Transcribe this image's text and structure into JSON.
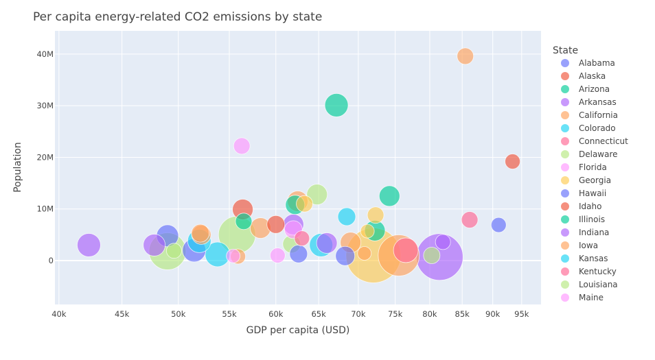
{
  "chart_data": {
    "type": "scatter",
    "title": "Per capita energy-related CO2 emissions by state",
    "xlabel": "GDP per capita (USD)",
    "ylabel": "Population",
    "x_scale": "log",
    "xlim": [
      39700,
      98500
    ],
    "ylim": [
      -8500000,
      44500000
    ],
    "x_ticks": [
      {
        "value": 40000,
        "label": "40k"
      },
      {
        "value": 45000,
        "label": "45k"
      },
      {
        "value": 50000,
        "label": "50k"
      },
      {
        "value": 55000,
        "label": "55k"
      },
      {
        "value": 60000,
        "label": "60k"
      },
      {
        "value": 65000,
        "label": "65k"
      },
      {
        "value": 70000,
        "label": "70k"
      },
      {
        "value": 75000,
        "label": "75k"
      },
      {
        "value": 80000,
        "label": "80k"
      },
      {
        "value": 85000,
        "label": "85k"
      },
      {
        "value": 90000,
        "label": "90k"
      },
      {
        "value": 95000,
        "label": "95k"
      }
    ],
    "y_ticks": [
      {
        "value": 0,
        "label": "0"
      },
      {
        "value": 10000000,
        "label": "10M"
      },
      {
        "value": 20000000,
        "label": "20M"
      },
      {
        "value": 30000000,
        "label": "30M"
      },
      {
        "value": 40000000,
        "label": "40M"
      }
    ],
    "grid": true,
    "legend_position": "right",
    "legend_title": "State",
    "marker_opacity": 0.65,
    "bubble_size_meaning": "Per capita energy-related CO2 emissions",
    "legend": [
      {
        "name": "Alabama",
        "color": "#636EFA"
      },
      {
        "name": "Alaska",
        "color": "#EF553B"
      },
      {
        "name": "Arizona",
        "color": "#00CC96"
      },
      {
        "name": "Arkansas",
        "color": "#AB63FA"
      },
      {
        "name": "California",
        "color": "#FFA15A"
      },
      {
        "name": "Colorado",
        "color": "#19D3F3"
      },
      {
        "name": "Connecticut",
        "color": "#FF6692"
      },
      {
        "name": "Delaware",
        "color": "#B6E880"
      },
      {
        "name": "Florida",
        "color": "#FF97FF"
      },
      {
        "name": "Georgia",
        "color": "#FECB52"
      },
      {
        "name": "Hawaii",
        "color": "#636EFA"
      },
      {
        "name": "Idaho",
        "color": "#EF553B"
      },
      {
        "name": "Illinois",
        "color": "#00CC96"
      },
      {
        "name": "Indiana",
        "color": "#AB63FA"
      },
      {
        "name": "Iowa",
        "color": "#FFA15A"
      },
      {
        "name": "Kansas",
        "color": "#19D3F3"
      },
      {
        "name": "Kentucky",
        "color": "#FF6692"
      },
      {
        "name": "Louisiana",
        "color": "#B6E880"
      },
      {
        "name": "Maine",
        "color": "#FF97FF"
      }
    ],
    "points": [
      {
        "x": 72000,
        "y": 1000000,
        "size": 40,
        "color": "#FECB52"
      },
      {
        "x": 81500,
        "y": 700000,
        "size": 34,
        "color": "#AB63FA"
      },
      {
        "x": 75500,
        "y": 1000000,
        "size": 30,
        "color": "#FFA15A"
      },
      {
        "x": 55800,
        "y": 5000000,
        "size": 27,
        "color": "#B6E880"
      },
      {
        "x": 49000,
        "y": 1800000,
        "size": 27,
        "color": "#B6E880"
      },
      {
        "x": 76500,
        "y": 2000000,
        "size": 18,
        "color": "#FF6692"
      },
      {
        "x": 53800,
        "y": 1200000,
        "size": 18,
        "color": "#19D3F3"
      },
      {
        "x": 51500,
        "y": 2000000,
        "size": 17,
        "color": "#636EFA"
      },
      {
        "x": 49000,
        "y": 4800000,
        "size": 16,
        "color": "#636EFA"
      },
      {
        "x": 67200,
        "y": 30100000,
        "size": 17,
        "color": "#00CC96"
      },
      {
        "x": 65300,
        "y": 3000000,
        "size": 17,
        "color": "#19D3F3"
      },
      {
        "x": 42300,
        "y": 3000000,
        "size": 17,
        "color": "#AB63FA"
      },
      {
        "x": 47800,
        "y": 3000000,
        "size": 16,
        "color": "#AB63FA"
      },
      {
        "x": 52000,
        "y": 3800000,
        "size": 17,
        "color": "#19D3F3"
      },
      {
        "x": 58300,
        "y": 6300000,
        "size": 15,
        "color": "#FFA15A"
      },
      {
        "x": 74200,
        "y": 12500000,
        "size": 15,
        "color": "#00CC96"
      },
      {
        "x": 64800,
        "y": 12800000,
        "size": 15,
        "color": "#B6E880"
      },
      {
        "x": 69000,
        "y": 3500000,
        "size": 15,
        "color": "#FFA15A"
      },
      {
        "x": 66000,
        "y": 3400000,
        "size": 15,
        "color": "#AB63FA"
      },
      {
        "x": 68300,
        "y": 900000,
        "size": 14,
        "color": "#636EFA"
      },
      {
        "x": 72200,
        "y": 5800000,
        "size": 15,
        "color": "#00CC96"
      },
      {
        "x": 56400,
        "y": 9900000,
        "size": 15,
        "color": "#EF553B"
      },
      {
        "x": 62500,
        "y": 11500000,
        "size": 15,
        "color": "#FFA15A"
      },
      {
        "x": 62000,
        "y": 7000000,
        "size": 15,
        "color": "#AB63FA"
      },
      {
        "x": 62200,
        "y": 10800000,
        "size": 14,
        "color": "#00CC96"
      },
      {
        "x": 60000,
        "y": 7000000,
        "size": 13,
        "color": "#EF553B"
      },
      {
        "x": 61800,
        "y": 3200000,
        "size": 13,
        "color": "#B6E880"
      },
      {
        "x": 62000,
        "y": 6000000,
        "size": 13,
        "color": "#FF97FF"
      },
      {
        "x": 63300,
        "y": 11000000,
        "size": 12,
        "color": "#FECB52"
      },
      {
        "x": 52200,
        "y": 5000000,
        "size": 14,
        "color": "#FFA15A"
      },
      {
        "x": 52100,
        "y": 5300000,
        "size": 13,
        "color": "#FFA15A"
      },
      {
        "x": 68500,
        "y": 8500000,
        "size": 13,
        "color": "#19D3F3"
      },
      {
        "x": 72300,
        "y": 8800000,
        "size": 12,
        "color": "#FECB52"
      },
      {
        "x": 56500,
        "y": 7600000,
        "size": 12,
        "color": "#00CC96"
      },
      {
        "x": 62600,
        "y": 1300000,
        "size": 13,
        "color": "#636EFA"
      },
      {
        "x": 63000,
        "y": 4300000,
        "size": 11,
        "color": "#FF6692"
      },
      {
        "x": 80300,
        "y": 1000000,
        "size": 12,
        "color": "#B6E880"
      },
      {
        "x": 49600,
        "y": 1900000,
        "size": 11,
        "color": "#B6E880"
      },
      {
        "x": 71200,
        "y": 5700000,
        "size": 10,
        "color": "#FECB52"
      },
      {
        "x": 70800,
        "y": 1400000,
        "size": 10,
        "color": "#FFA15A"
      },
      {
        "x": 56300,
        "y": 22200000,
        "size": 12,
        "color": "#FF97FF"
      },
      {
        "x": 85500,
        "y": 39600000,
        "size": 12,
        "color": "#FFA15A"
      },
      {
        "x": 93400,
        "y": 19200000,
        "size": 11,
        "color": "#EF553B"
      },
      {
        "x": 86200,
        "y": 7900000,
        "size": 12,
        "color": "#FF6692"
      },
      {
        "x": 91000,
        "y": 6900000,
        "size": 11,
        "color": "#636EFA"
      },
      {
        "x": 82000,
        "y": 3600000,
        "size": 11,
        "color": "#AB63FA"
      },
      {
        "x": 60200,
        "y": 1000000,
        "size": 11,
        "color": "#FF97FF"
      },
      {
        "x": 55900,
        "y": 800000,
        "size": 11,
        "color": "#FFA15A"
      },
      {
        "x": 55400,
        "y": 900000,
        "size": 10,
        "color": "#FF97FF"
      }
    ]
  }
}
